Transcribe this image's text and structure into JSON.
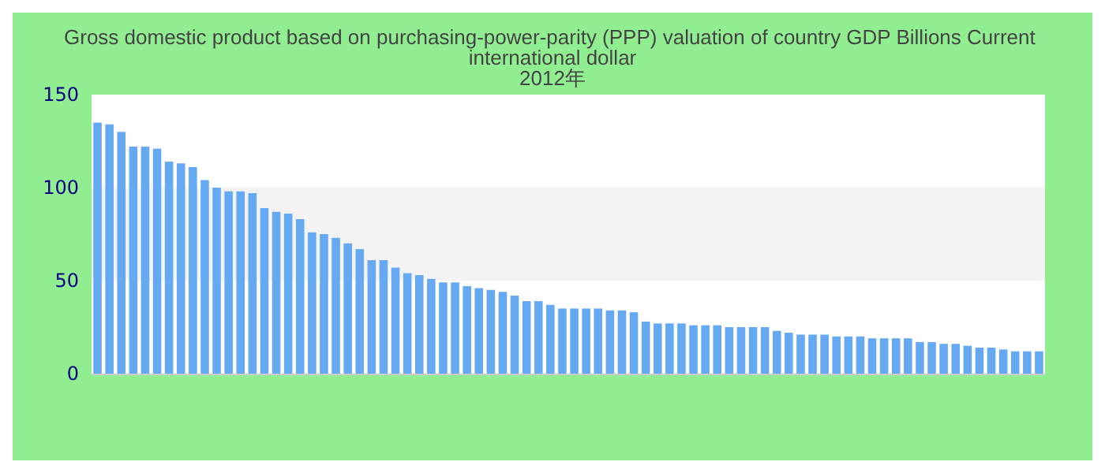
{
  "chart_data": {
    "type": "bar",
    "title": "Gross domestic product based on purchasing-power-parity (PPP) valuation of country GDP Billions Current international dollar\n2012年",
    "categories": [
      null,
      null,
      null,
      null,
      null,
      null,
      null,
      null,
      null,
      null,
      null,
      null,
      null,
      null,
      null,
      null,
      null,
      null,
      null,
      null,
      null,
      null,
      null,
      null,
      null,
      null,
      null,
      null,
      null,
      null,
      null,
      null,
      null,
      null,
      null,
      null,
      null,
      null,
      null,
      null,
      null,
      null,
      null,
      null,
      null,
      null,
      null,
      null,
      null,
      null,
      null,
      null,
      null,
      null,
      null,
      null,
      null,
      null,
      null,
      null,
      null,
      null,
      null,
      null,
      null,
      null,
      null,
      null,
      null,
      null,
      null,
      null,
      null,
      null,
      null,
      null,
      null,
      null,
      null,
      null
    ],
    "values": [
      135,
      134,
      130,
      122,
      122,
      121,
      114,
      113,
      111,
      104,
      100,
      98,
      98,
      97,
      89,
      87,
      86,
      83,
      76,
      75,
      73,
      70,
      67,
      61,
      61,
      57,
      54,
      53,
      51,
      49,
      49,
      47,
      46,
      45,
      44,
      42,
      39,
      39,
      37,
      35,
      35,
      35,
      35,
      34,
      34,
      33,
      28,
      27,
      27,
      27,
      26,
      26,
      26,
      25,
      25,
      25,
      25,
      23,
      22,
      21,
      21,
      21,
      20,
      20,
      20,
      19,
      19,
      19,
      19,
      17,
      17,
      16,
      16,
      15,
      14,
      14,
      13,
      12,
      12,
      12
    ],
    "color": "#64a9f2",
    "ylim": [
      0,
      150
    ],
    "yticks": [
      0,
      50,
      100,
      150
    ],
    "bands": [
      {
        "axis": "y",
        "from": 50,
        "to": 100,
        "color": "#f3f3f3"
      }
    ]
  }
}
